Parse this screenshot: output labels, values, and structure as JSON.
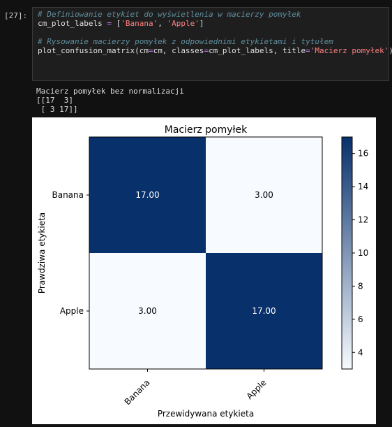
{
  "cell": {
    "prompt": "[27]:",
    "code": [
      {
        "parts": [
          {
            "t": "cmt",
            "v": "# Definiowanie etykiet do wyświetlenia w macierzy pomyłek"
          }
        ]
      },
      {
        "parts": [
          {
            "t": "txt",
            "v": "cm_plot_labels "
          },
          {
            "t": "op",
            "v": "="
          },
          {
            "t": "txt",
            "v": " ["
          },
          {
            "t": "str",
            "v": "'Banana'"
          },
          {
            "t": "txt",
            "v": ", "
          },
          {
            "t": "str",
            "v": "'Apple'"
          },
          {
            "t": "txt",
            "v": "]"
          }
        ]
      },
      {
        "parts": []
      },
      {
        "parts": [
          {
            "t": "cmt",
            "v": "# Rysowanie macierzy pomyłek z odpowiednimi etykietami i tytułem"
          }
        ]
      },
      {
        "parts": [
          {
            "t": "txt",
            "v": "plot_confusion_matrix(cm"
          },
          {
            "t": "op",
            "v": "="
          },
          {
            "t": "txt",
            "v": "cm, classes"
          },
          {
            "t": "op",
            "v": "="
          },
          {
            "t": "txt",
            "v": "cm_plot_labels, title"
          },
          {
            "t": "op",
            "v": "="
          },
          {
            "t": "str",
            "v": "'Macierz pomyłek'"
          },
          {
            "t": "txt",
            "v": ")"
          }
        ]
      }
    ]
  },
  "output": {
    "lines": [
      "Macierz pomyłek bez normalizacji",
      "[[17  3]",
      " [ 3 17]]"
    ]
  },
  "chart_data": {
    "type": "heatmap",
    "title": "Macierz pomyłek",
    "xlabel": "Przewidywana etykieta",
    "ylabel": "Prawdziwa etykieta",
    "x_categories": [
      "Banana",
      "Apple"
    ],
    "y_categories": [
      "Banana",
      "Apple"
    ],
    "values": [
      [
        17,
        3
      ],
      [
        3,
        17
      ]
    ],
    "cell_labels": [
      [
        "17.00",
        "3.00"
      ],
      [
        "3.00",
        "17.00"
      ]
    ],
    "colormap": "Blues",
    "colorbar": {
      "min": 3,
      "max": 17,
      "ticks": [
        4,
        6,
        8,
        10,
        12,
        14,
        16
      ]
    },
    "colors": {
      "low": "#f7fbff",
      "high": "#08306b"
    }
  }
}
